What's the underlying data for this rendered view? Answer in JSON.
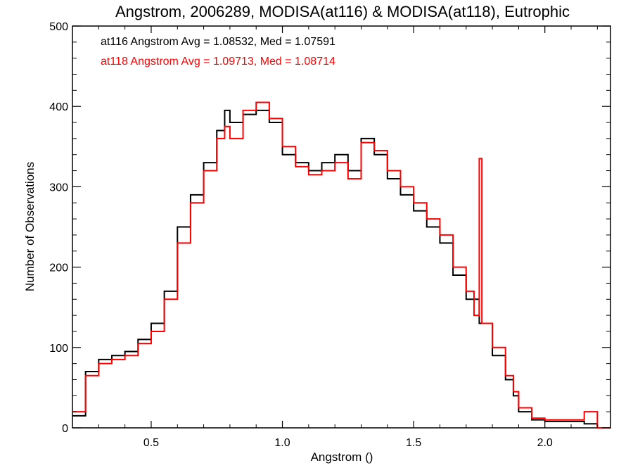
{
  "chart_data": {
    "type": "histogram-step",
    "title": "Angstrom, 2006289, MODISA(at116) & MODISA(at118), Eutrophic",
    "xlabel": "Angstrom ()",
    "ylabel": "Number of Observations",
    "xlim": [
      0.2,
      2.25
    ],
    "ylim": [
      0,
      500
    ],
    "xticks": [
      {
        "value": 0.5,
        "label": "0.5"
      },
      {
        "value": 1.0,
        "label": "1.0"
      },
      {
        "value": 1.5,
        "label": "1.5"
      },
      {
        "value": 2.0,
        "label": "2.0"
      }
    ],
    "yticks": [
      {
        "value": 0,
        "label": "0"
      },
      {
        "value": 100,
        "label": "100"
      },
      {
        "value": 200,
        "label": "200"
      },
      {
        "value": 300,
        "label": "300"
      },
      {
        "value": 400,
        "label": "400"
      },
      {
        "value": 500,
        "label": "500"
      }
    ],
    "grid": false,
    "annotations": [
      {
        "text": "at116 Angstrom Avg = 1.08532, Med = 1.07591",
        "color": "#000000"
      },
      {
        "text": "at118 Angstrom Avg = 1.09713, Med = 1.08714",
        "color": "#ff0000"
      }
    ],
    "series": [
      {
        "color": "#000000",
        "x": [
          0.2,
          0.25,
          0.3,
          0.35,
          0.4,
          0.45,
          0.5,
          0.55,
          0.6,
          0.65,
          0.7,
          0.75,
          0.78,
          0.8,
          0.85,
          0.9,
          0.95,
          1.0,
          1.05,
          1.1,
          1.15,
          1.2,
          1.25,
          1.3,
          1.35,
          1.4,
          1.45,
          1.5,
          1.55,
          1.6,
          1.65,
          1.7,
          1.75,
          1.8,
          1.85,
          1.88,
          1.9,
          1.95,
          2.0,
          2.05,
          2.1,
          2.15,
          2.2,
          2.25
        ],
        "values": [
          15,
          70,
          85,
          90,
          95,
          110,
          130,
          170,
          250,
          290,
          330,
          370,
          395,
          380,
          390,
          395,
          380,
          340,
          330,
          320,
          330,
          340,
          320,
          360,
          340,
          310,
          290,
          270,
          250,
          230,
          190,
          160,
          130,
          90,
          60,
          40,
          20,
          10,
          8,
          8,
          8,
          5,
          0,
          0
        ]
      },
      {
        "color": "#ff0000",
        "x": [
          0.2,
          0.25,
          0.3,
          0.35,
          0.4,
          0.45,
          0.5,
          0.55,
          0.6,
          0.65,
          0.7,
          0.75,
          0.78,
          0.8,
          0.85,
          0.9,
          0.95,
          1.0,
          1.05,
          1.1,
          1.15,
          1.2,
          1.25,
          1.3,
          1.35,
          1.4,
          1.45,
          1.5,
          1.55,
          1.6,
          1.65,
          1.7,
          1.73,
          1.75,
          1.76,
          1.8,
          1.85,
          1.88,
          1.9,
          1.95,
          2.0,
          2.05,
          2.1,
          2.15,
          2.2,
          2.25
        ],
        "values": [
          20,
          65,
          80,
          85,
          90,
          105,
          120,
          160,
          230,
          280,
          320,
          360,
          375,
          360,
          395,
          405,
          385,
          350,
          325,
          315,
          320,
          330,
          310,
          355,
          345,
          320,
          300,
          280,
          260,
          240,
          200,
          170,
          140,
          335,
          130,
          100,
          65,
          45,
          25,
          12,
          10,
          10,
          10,
          20,
          0,
          0
        ]
      }
    ]
  }
}
